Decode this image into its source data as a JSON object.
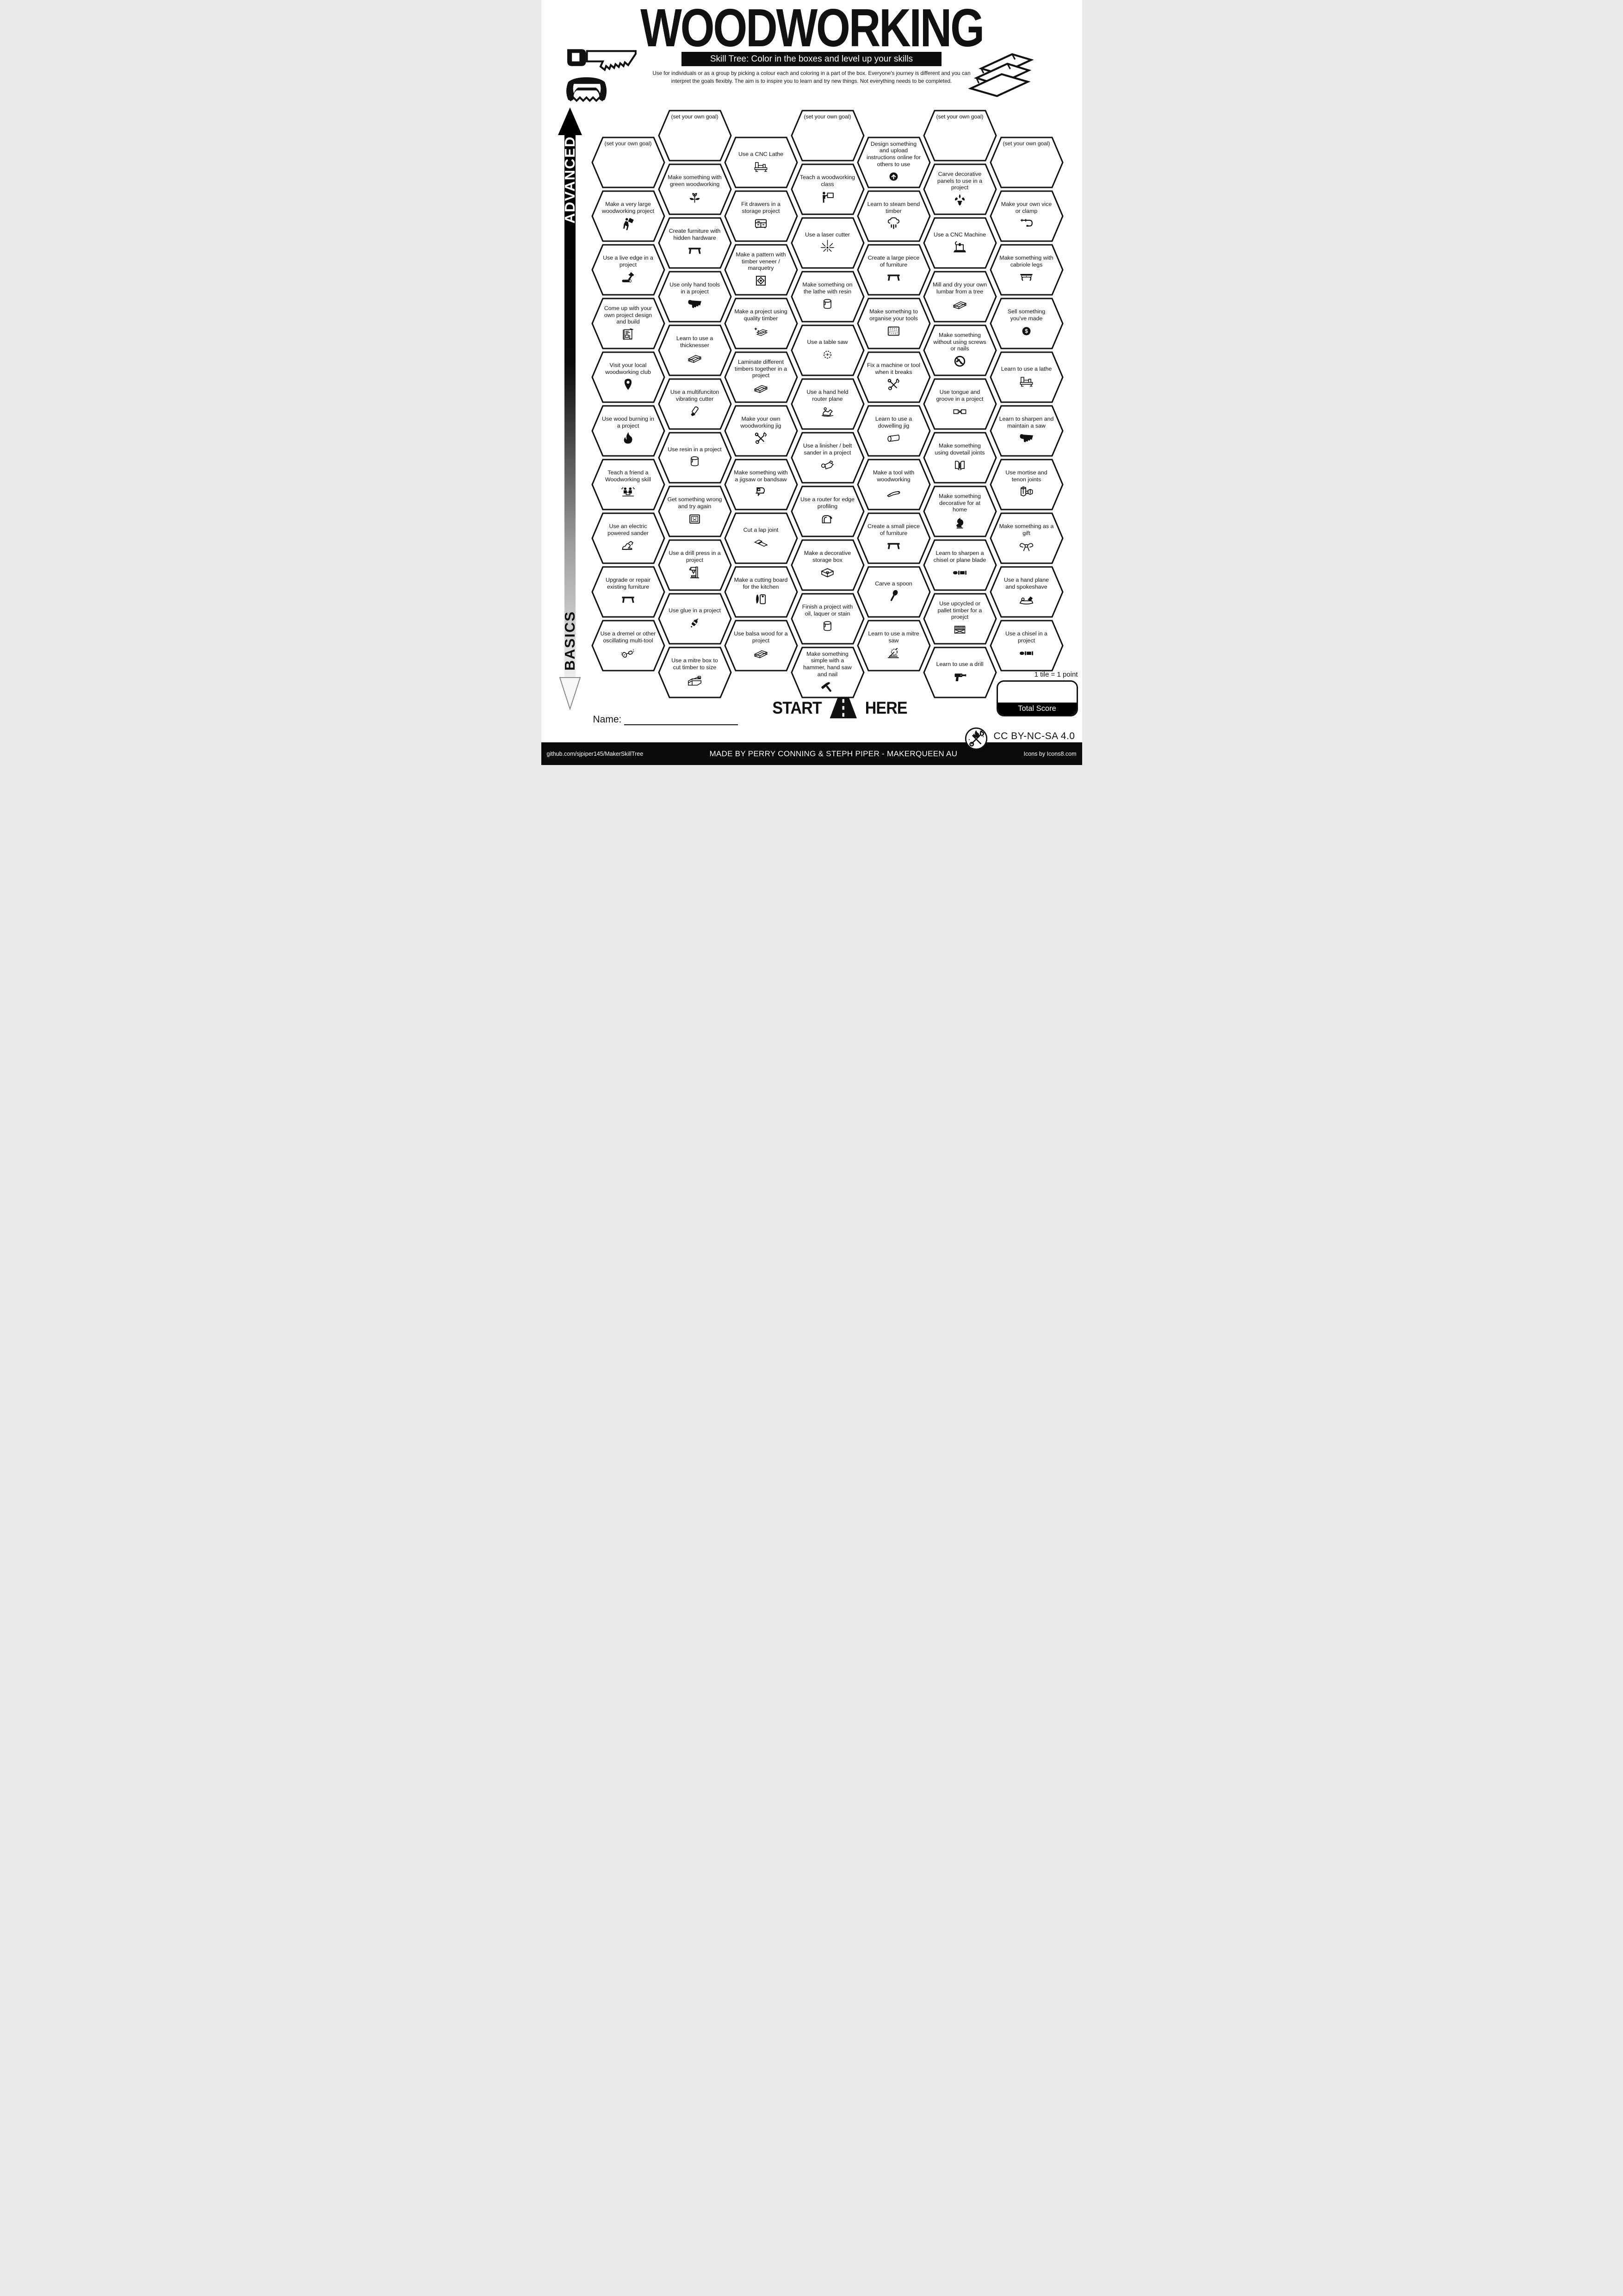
{
  "colors": {
    "ink": "#111111",
    "paper": "#ffffff"
  },
  "header": {
    "title": "WOODWORKING",
    "subtitle": "Skill Tree:  Color in the boxes and level up your skills",
    "description_line1": "Use for individuals or as a group by picking a colour each and coloring in a part of the box.  Everyone's journey is different and you can",
    "description_line2": "interpret the goals flexibly.  The aim is to inspire you to learn and try new things. Not everything needs to be completed."
  },
  "sidebar": {
    "top_label": "ADVANCED",
    "bottom_label": "BASICS"
  },
  "start": {
    "start_label": "START",
    "here_label": "HERE"
  },
  "name_label": "Name:",
  "scoring": {
    "tile_note": "1 tile = 1 point",
    "total_score_label": "Total Score"
  },
  "license": "CC BY-NC-SA 4.0",
  "footer": {
    "left": "github.com/sjpiper145/MakerSkillTree",
    "center": "MADE BY PERRY CONNING & STEPH PIPER  -  MAKERQUEEN AU",
    "right": "Icons by Icons8.com"
  },
  "grid": {
    "columns": [
      {
        "cells": [
          {
            "label": "(set your own goal)",
            "goal": true,
            "icon": null
          },
          {
            "label": "Make a very large woodworking project",
            "icon": "carry-panel"
          },
          {
            "label": "Use a live edge in a project",
            "icon": "axe-log"
          },
          {
            "label": "Come up with your own project design and build",
            "icon": "blueprint"
          },
          {
            "label": "Visit your local woodworking club",
            "icon": "location-pin"
          },
          {
            "label": "Use wood burning in a project",
            "icon": "flame"
          },
          {
            "label": "Teach a friend a Woodworking skill",
            "icon": "friends"
          },
          {
            "label": "Use an electric powered sander",
            "icon": "orbital-sander"
          },
          {
            "label": "Upgrade or repair existing furniture",
            "icon": "table"
          },
          {
            "label": "Use a dremel or other oscillating multi-tool",
            "icon": "rotary-tool"
          }
        ]
      },
      {
        "cells": [
          {
            "label": "(set your own goal)",
            "goal": true,
            "icon": null
          },
          {
            "label": "Make something with green woodworking",
            "icon": "seedling"
          },
          {
            "label": "Create furniture with hidden hardware",
            "icon": "table"
          },
          {
            "label": "Use only hand tools in a project",
            "icon": "saw"
          },
          {
            "label": "Learn to use a thicknesser",
            "icon": "boards"
          },
          {
            "label": "Use a multifunciton vibrating cutter",
            "icon": "oscillating-cutter"
          },
          {
            "label": "Use resin in a project",
            "icon": "paint-can"
          },
          {
            "label": "Get something wrong and try again",
            "icon": "sad-frame"
          },
          {
            "label": "Use a drill press in a project",
            "icon": "drill-press"
          },
          {
            "label": "Use glue in a project",
            "icon": "glue-bottle"
          },
          {
            "label": "Use a mitre box to cut timber to size",
            "icon": "mitre-box"
          }
        ]
      },
      {
        "cells": [
          {
            "label": "Use a CNC Lathe",
            "icon": "lathe"
          },
          {
            "label": "Fit drawers in a storage project",
            "icon": "drawer-cabinet"
          },
          {
            "label": "Make a pattern with timber veneer / marquetry",
            "icon": "marquetry"
          },
          {
            "label": "Make a project using quality timber",
            "icon": "sparkle-boards"
          },
          {
            "label": "Laminate different timbers together in a project",
            "icon": "boards"
          },
          {
            "label": "Make your own woodworking jig",
            "icon": "tools-crossed"
          },
          {
            "label": "Make something with a jigsaw or bandsaw",
            "icon": "jigsaw"
          },
          {
            "label": "Cut a lap joint",
            "icon": "lap-joint"
          },
          {
            "label": "Make a cutting board for the kitchen",
            "icon": "cutting-board"
          },
          {
            "label": "Use balsa wood for a project",
            "icon": "boards"
          }
        ]
      },
      {
        "cells": [
          {
            "label": "(set your own goal)",
            "goal": true,
            "icon": null
          },
          {
            "label": "Teach a woodworking class",
            "icon": "teacher"
          },
          {
            "label": "Use a laser cutter",
            "icon": "laser"
          },
          {
            "label": "Make something on the lathe with resin",
            "icon": "paint-can"
          },
          {
            "label": "Use a table saw",
            "icon": "saw-blade"
          },
          {
            "label": "Use a hand held router plane",
            "icon": "router-plane"
          },
          {
            "label": "Use a linisher / belt sander in a project",
            "icon": "belt-sander"
          },
          {
            "label": "Use a router for edge profiling",
            "icon": "edge-profile"
          },
          {
            "label": "Make a decorative storage box",
            "icon": "storage-box"
          },
          {
            "label": "Finish a project with oil,  laquer or stain",
            "icon": "paint-can"
          },
          {
            "label": "Make something simple with a hammer, hand saw and nail",
            "icon": "hammer"
          }
        ]
      },
      {
        "cells": [
          {
            "label": "Design something and upload instructions online for others to use",
            "icon": "upload"
          },
          {
            "label": "Learn to steam bend timber",
            "icon": "steam"
          },
          {
            "label": "Create a large piece of furniture",
            "icon": "table"
          },
          {
            "label": "Make something to organise your tools",
            "icon": "pegboard"
          },
          {
            "label": "Fix a machine or tool when it breaks",
            "icon": "tools-crossed"
          },
          {
            "label": "Learn to use a dowelling jig",
            "icon": "dowel"
          },
          {
            "label": "Make a tool with woodworking",
            "icon": "spokeshave-blade"
          },
          {
            "label": "Create a small piece of furniture",
            "icon": "table"
          },
          {
            "label": "Carve a spoon",
            "icon": "spoon"
          },
          {
            "label": "Learn to use a mitre saw",
            "icon": "mitre-saw"
          }
        ]
      },
      {
        "cells": [
          {
            "label": "(set your own goal)",
            "goal": true,
            "icon": null
          },
          {
            "label": "Carve decorative panels to use in a project",
            "icon": "fleur"
          },
          {
            "label": "Use a CNC Machine",
            "icon": "cnc-machine"
          },
          {
            "label": "Mill and dry your own lumbar from a tree",
            "icon": "boards"
          },
          {
            "label": "Make something without using screws or nails",
            "icon": "no-hammer"
          },
          {
            "label": "Use tongue and groove in a project",
            "icon": "tongue-groove"
          },
          {
            "label": "Make something using dovetail joints",
            "icon": "dovetail"
          },
          {
            "label": "Make something decorative for at home",
            "icon": "carving"
          },
          {
            "label": "Learn to sharpen a chisel or plane blade",
            "icon": "chisel"
          },
          {
            "label": "Use upcycled or pallet timber for a proejct",
            "icon": "pallet"
          },
          {
            "label": "Learn to use a drill",
            "icon": "power-drill"
          }
        ]
      },
      {
        "cells": [
          {
            "label": "(set your own goal)",
            "goal": true,
            "icon": null
          },
          {
            "label": "Make your own vice or clamp",
            "icon": "c-clamp"
          },
          {
            "label": "Make something with cabriole legs",
            "icon": "cabriole"
          },
          {
            "label": "Sell something you've made",
            "icon": "dollar"
          },
          {
            "label": "Learn to use a lathe",
            "icon": "lathe"
          },
          {
            "label": "Learn to sharpen and maintain a saw",
            "icon": "saw"
          },
          {
            "label": "Use mortise and tenon joints",
            "icon": "mortise-tenon"
          },
          {
            "label": "Make something as a gift",
            "icon": "gift-bow"
          },
          {
            "label": "Use a hand plane and spokeshave",
            "icon": "hand-plane"
          },
          {
            "label": "Use a chisel in a project",
            "icon": "chisel"
          }
        ]
      }
    ]
  }
}
